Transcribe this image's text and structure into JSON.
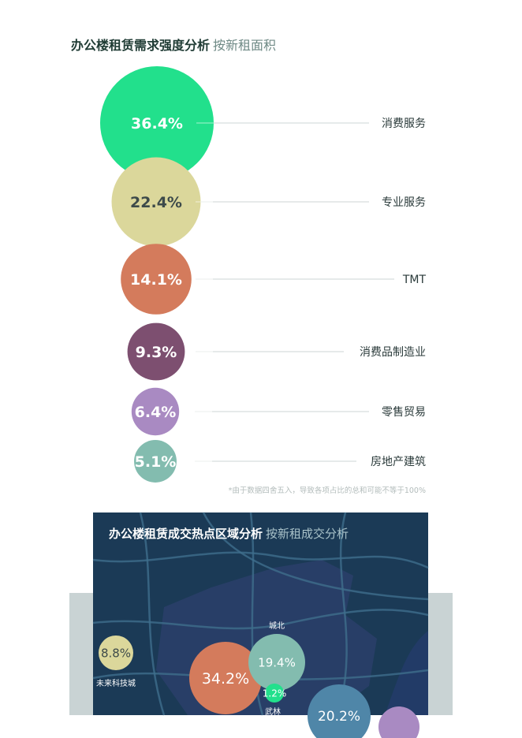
{
  "section1": {
    "title": "办公楼租赁需求强度分析",
    "subtitle": "按新租面积",
    "footnote": "*由于数据四舍五入，导致各项占比的总和可能不等于100%"
  },
  "chart_data": [
    {
      "type": "bubble",
      "categories": [
        "消费服务",
        "专业服务",
        "TMT",
        "消费品制造业",
        "零售贸易",
        "房地产建筑"
      ],
      "values": [
        36.4,
        22.4,
        14.1,
        9.3,
        6.4,
        5.1
      ],
      "value_labels": [
        "36.4%",
        "22.4%",
        "14.1%",
        "9.3%",
        "6.4%",
        "5.1%"
      ],
      "colors": [
        "#22e08c",
        "#dbd79b",
        "#d47b5c",
        "#7d4f70",
        "#a98ac2",
        "#83bcaf"
      ],
      "label_colors": [
        "#ffffff",
        "#3d4a4a",
        "#ffffff",
        "#ffffff",
        "#ffffff",
        "#ffffff"
      ],
      "title": "办公楼租赁需求强度分析",
      "subtitle": "按新租面积"
    },
    {
      "type": "bubble-map",
      "title": "办公楼租赁成交热点区域分析",
      "subtitle": "按新租成交分析",
      "points": [
        {
          "name": "未来科技城",
          "value": 8.8,
          "label": "8.8%",
          "color": "#dbd79b",
          "label_color": "#3d4a4a"
        },
        {
          "name": "",
          "value": 34.2,
          "label": "34.2%",
          "color": "#d47b5c",
          "label_color": "#ffffff"
        },
        {
          "name": "城北",
          "value": 19.4,
          "label": "19.4%",
          "color": "#83bcaf",
          "label_color": "#ffffff"
        },
        {
          "name": "武林",
          "value": 1.2,
          "label": "1.2%",
          "color": "#22e08c",
          "label_color": "#ffffff"
        },
        {
          "name": "",
          "value": 20.2,
          "label": "20.2%",
          "color": "#4f86a8",
          "label_color": "#ffffff"
        },
        {
          "name": "",
          "value": null,
          "label": "",
          "color": "#a98ac2",
          "label_color": "#ffffff"
        }
      ]
    }
  ]
}
